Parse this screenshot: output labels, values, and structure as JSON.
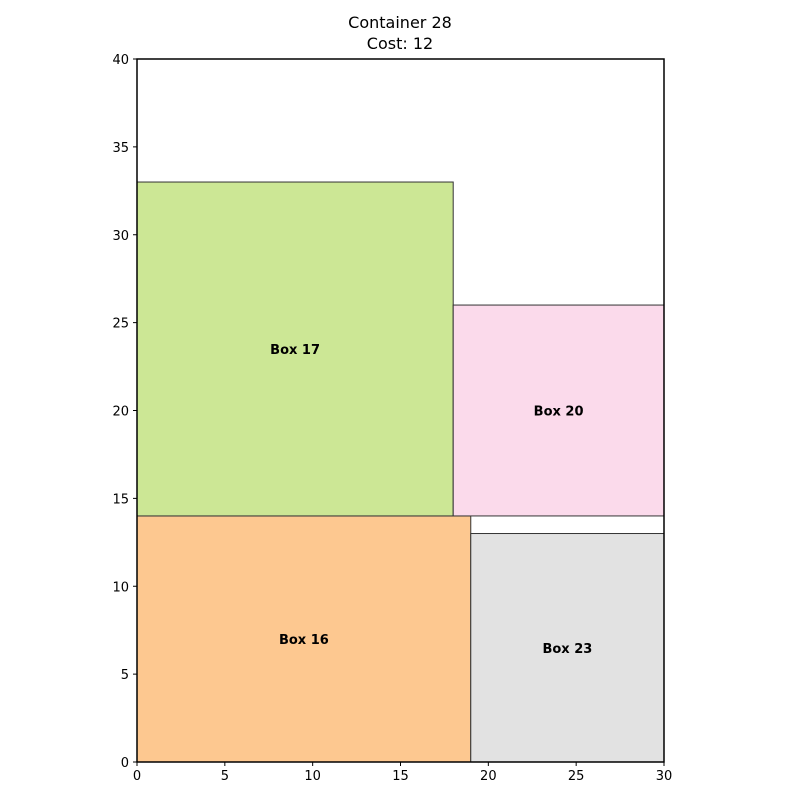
{
  "title": {
    "line1": "Container 28",
    "line2": "Cost: 12"
  },
  "chart_data": {
    "type": "rectangle-packing",
    "container": {
      "width": 30,
      "height": 40
    },
    "xlim": [
      0,
      30
    ],
    "ylim": [
      0,
      40
    ],
    "x_ticks": [
      0,
      5,
      10,
      15,
      20,
      25,
      30
    ],
    "y_ticks": [
      0,
      5,
      10,
      15,
      20,
      25,
      30,
      35,
      40
    ],
    "grid": false,
    "boxes": [
      {
        "label": "Box 16",
        "x": 0,
        "y": 0,
        "w": 19,
        "h": 14,
        "color": "#fdc890"
      },
      {
        "label": "Box 23",
        "x": 19,
        "y": 0,
        "w": 11,
        "h": 13,
        "color": "#e2e2e2"
      },
      {
        "label": "Box 17",
        "x": 0,
        "y": 14,
        "w": 18,
        "h": 19,
        "color": "#cce795"
      },
      {
        "label": "Box 20",
        "x": 18,
        "y": 14,
        "w": 12,
        "h": 12,
        "color": "#fbdaeb"
      }
    ]
  }
}
